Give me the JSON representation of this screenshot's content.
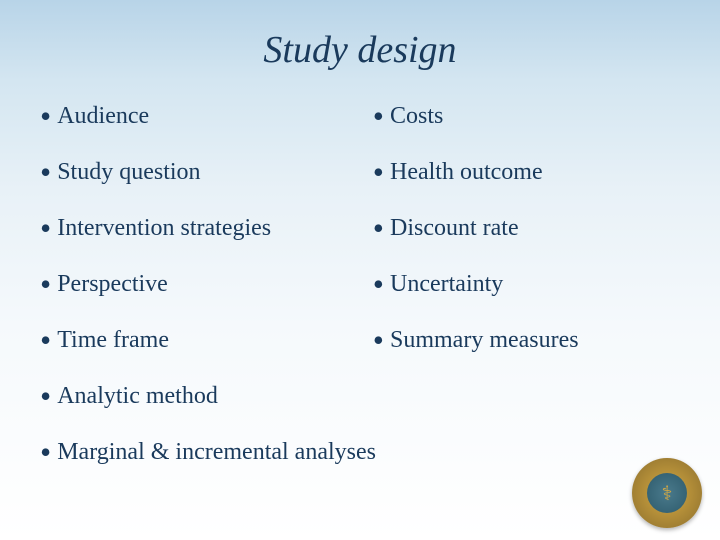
{
  "title": "Study design",
  "leftColumn": [
    "Audience",
    "Study question",
    "Intervention strategies",
    "Perspective",
    "Time frame"
  ],
  "rightColumn": [
    "Costs",
    "Health outcome",
    "Discount rate",
    "Uncertainty",
    "Summary measures"
  ],
  "fullWidthItems": [
    "Analytic method",
    "Marginal & incremental analyses"
  ],
  "colors": {
    "text": "#1a3a5c",
    "bgGradientTop": "#b8d4e8",
    "bgGradientBottom": "#ffffff",
    "logoGold": "#d4a843",
    "logoTeal": "#2d5a6b"
  },
  "typography": {
    "titleFont": "Georgia, serif",
    "titleSize": 38,
    "titleStyle": "italic",
    "bodySize": 24
  }
}
